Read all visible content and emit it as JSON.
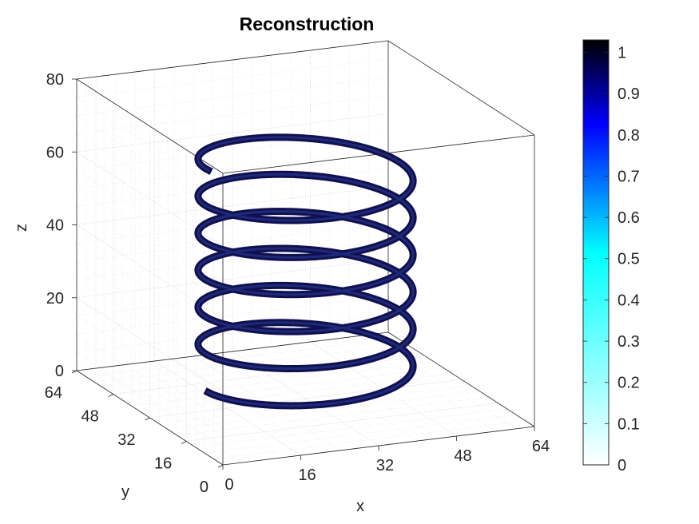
{
  "chart_data": {
    "type": "scatter3d",
    "title": "Reconstruction",
    "xlabel": "x",
    "ylabel": "y",
    "zlabel": "z",
    "xlim": [
      0,
      64
    ],
    "ylim": [
      0,
      64
    ],
    "zlim": [
      0,
      80
    ],
    "xticks": [
      0,
      16,
      32,
      48,
      64
    ],
    "yticks": [
      0,
      16,
      32,
      48,
      64
    ],
    "zticks": [
      0,
      20,
      40,
      60,
      80
    ],
    "grid": true,
    "helix": {
      "center_x": 32,
      "center_y": 32,
      "radius": 20,
      "z_start": 5,
      "z_end": 66,
      "turns": 6,
      "value": 0.95,
      "color": "#101050"
    },
    "colorbar": {
      "min": 0,
      "max": 1.03,
      "ticks": [
        0,
        0.1,
        0.2,
        0.3,
        0.4,
        0.5,
        0.6,
        0.7,
        0.8,
        0.9,
        1
      ],
      "colormap_stops": [
        "#ffffff",
        "#00ffff",
        "#0000ff",
        "#000000"
      ]
    }
  }
}
